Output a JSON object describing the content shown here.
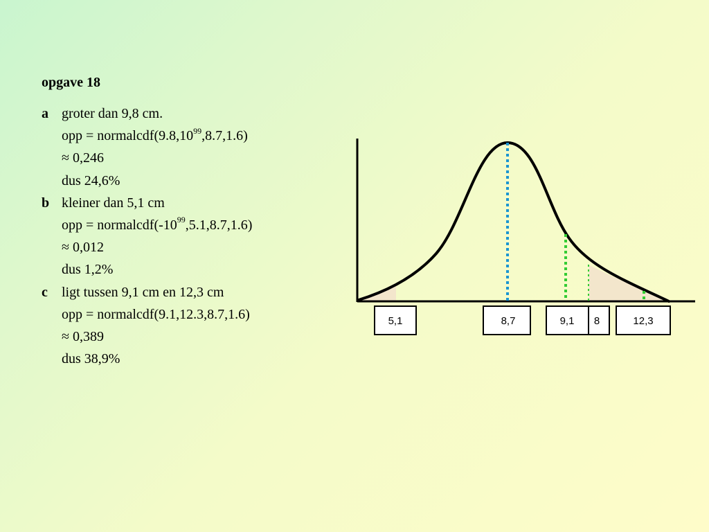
{
  "title": "opgave 18",
  "parts": [
    {
      "letter": "a",
      "heading": "groter dan 9,8 cm.",
      "formula_pre": "opp = normalcdf(9.8,10",
      "formula_sup": "99",
      "formula_post": ",8.7,1.6)",
      "approx": "≈ 0,246",
      "conclusion": "dus 24,6%"
    },
    {
      "letter": "b",
      "heading": "kleiner dan 5,1 cm",
      "formula_pre": "opp = normalcdf(-10",
      "formula_sup": "99",
      "formula_post": ",5.1,8.7,1.6)",
      "approx": "≈ 0,012",
      "conclusion": "dus 1,2%"
    },
    {
      "letter": "c",
      "heading": "ligt tussen 9,1 cm en 12,3 cm",
      "formula": "opp = normalcdf(9.1,12.3,8.7,1.6)",
      "approx": "≈ 0,389",
      "conclusion": "dus 38,9%"
    }
  ],
  "diagram": {
    "labels": {
      "low": "5,1",
      "mean": "8,7",
      "mid": "9,1",
      "partial": "8",
      "high": "12,3"
    },
    "colors": {
      "curve": "#000000",
      "shade": "#f3e6cc",
      "mean_line": "#1b96d2",
      "marker_lines": "#33cc33",
      "label_box_fill": "#ffffff"
    }
  }
}
